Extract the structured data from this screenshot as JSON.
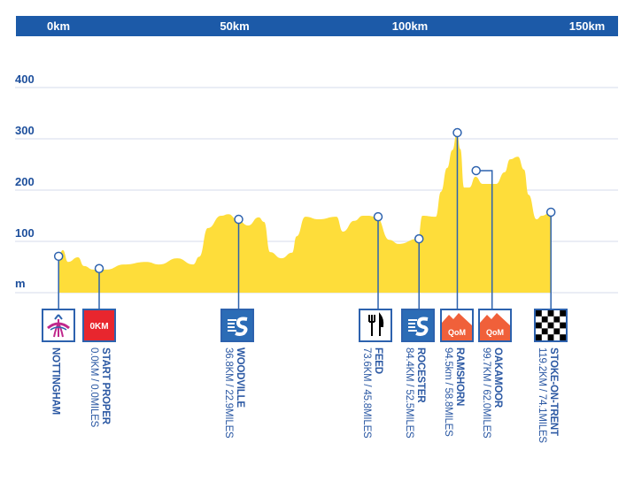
{
  "colors": {
    "header": "#1c5aa8",
    "fill": "#fedd3a",
    "grid": "#e3e7f2",
    "marker": "#2d62ae",
    "text": "#2b58a3"
  },
  "header_ticks": [
    "0km",
    "50km",
    "100km",
    "150km"
  ],
  "chart_data": {
    "type": "area",
    "title": "",
    "ylabel": "m",
    "xlabel": "",
    "y_ticks": [
      100,
      200,
      300,
      400
    ],
    "ylim": [
      0,
      400
    ],
    "grid": true,
    "profile": {
      "km": [
        -10.7,
        -9.6,
        -8.2,
        -5.6,
        -4.0,
        -1.6,
        1.9,
        6.5,
        12.4,
        15.9,
        20.6,
        24.8,
        26.4,
        28.7,
        32.2,
        34.1,
        36.4,
        39.3,
        42.1,
        43.5,
        45.1,
        48.1,
        50.9,
        52.1,
        54.4,
        57.9,
        62.6,
        64.3,
        67.3,
        69.6,
        70.8,
        73.1,
        76.6,
        79.0,
        84.1,
        85.3,
        88.8,
        90.2,
        91.8,
        93.2,
        94.4,
        95.3,
        96.3,
        97.7,
        99.3,
        101.2,
        104.7,
        107.0,
        108.4,
        110.5,
        112.1,
        113.3,
        115.4,
        116.8,
        119.2
      ],
      "elevation_m": [
        71,
        83,
        60,
        69,
        52,
        45,
        45,
        55,
        60,
        55,
        67,
        55,
        70,
        126,
        150,
        153,
        143,
        131,
        147,
        138,
        79,
        67,
        78,
        110,
        148,
        143,
        148,
        119,
        140,
        150,
        150,
        148,
        103,
        95,
        105,
        150,
        148,
        197,
        243,
        278,
        312,
        280,
        205,
        205,
        226,
        212,
        212,
        235,
        260,
        265,
        240,
        191,
        143,
        150,
        157
      ]
    },
    "markers": [
      {
        "name": "NOTTINGHAM",
        "distance": "",
        "icon": "nottingham-logo-icon",
        "elevation_m": 71
      },
      {
        "name": "START PROPER",
        "distance": "0.0KM / 0.0MILES",
        "icon": "start-0km-icon",
        "badge": "0KM",
        "km": 0,
        "elevation_m": 47
      },
      {
        "name": "WOODVILLE",
        "distance": "36.8KM / 22.9MILES",
        "icon": "sprint-icon",
        "km": 36.8,
        "elevation_m": 143
      },
      {
        "name": "FEED",
        "distance": "73.6KM / 45.8MILES",
        "icon": "fork-knife-icon",
        "km": 73.6,
        "elevation_m": 148
      },
      {
        "name": "ROCESTER",
        "distance": "84.4KM / 52.5MILES",
        "icon": "sprint-icon",
        "km": 84.4,
        "elevation_m": 105
      },
      {
        "name": "RAMSHORN",
        "distance": "94.5km / 58.8MILES",
        "icon": "qom-mountain-icon",
        "badge": "QoM",
        "km": 94.5,
        "elevation_m": 312
      },
      {
        "name": "OAKAMOOR",
        "distance": "99.7KM / 62.0MILES",
        "icon": "qom-mountain-icon",
        "badge": "QoM",
        "km": 99.7,
        "elevation_m": 238
      },
      {
        "name": "STOKE-ON-TRENT",
        "distance": "119.2KM / 74.1MILES",
        "icon": "chequered-flag-icon",
        "km": 119.2,
        "elevation_m": 157
      }
    ]
  }
}
